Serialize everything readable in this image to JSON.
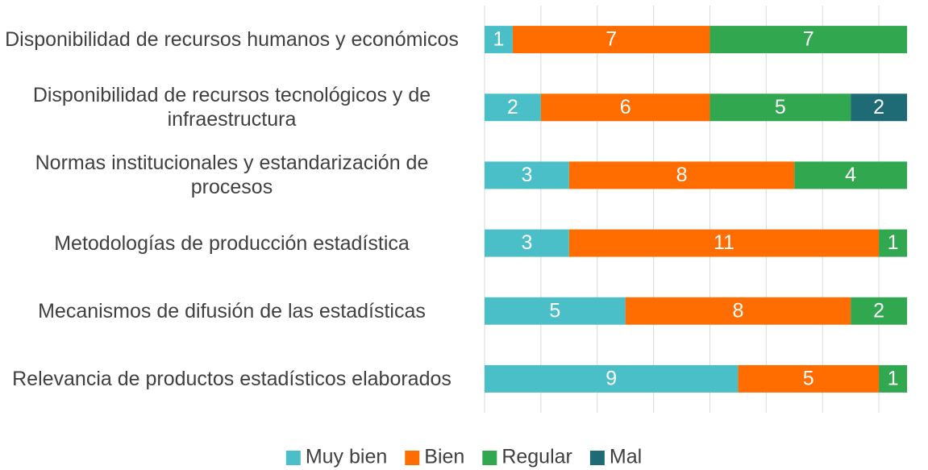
{
  "chart_data": {
    "type": "stacked_barh",
    "categories": [
      "Disponibilidad de recursos humanos y económicos",
      "Disponibilidad de recursos tecnológicos y de infraestructura",
      "Normas institucionales y estandarización de procesos",
      "Metodologías de producción estadística",
      "Mecanismos de difusión de las estadísticas",
      "Relevancia de productos estadísticos elaborados"
    ],
    "series": [
      {
        "name": "Muy bien",
        "color": "#4bbfc8",
        "values": [
          1,
          2,
          3,
          3,
          5,
          9
        ]
      },
      {
        "name": "Bien",
        "color": "#ff6d00",
        "values": [
          7,
          6,
          8,
          11,
          8,
          5
        ]
      },
      {
        "name": "Regular",
        "color": "#31a84f",
        "values": [
          7,
          5,
          4,
          1,
          2,
          1
        ]
      },
      {
        "name": "Mal",
        "color": "#1f6b75",
        "values": [
          null,
          2,
          null,
          null,
          null,
          null
        ]
      }
    ],
    "xlim": [
      0,
      15
    ],
    "xticks": [
      0,
      2,
      4,
      6,
      8,
      10,
      12,
      14
    ],
    "grid": true,
    "legend": "bottom"
  }
}
